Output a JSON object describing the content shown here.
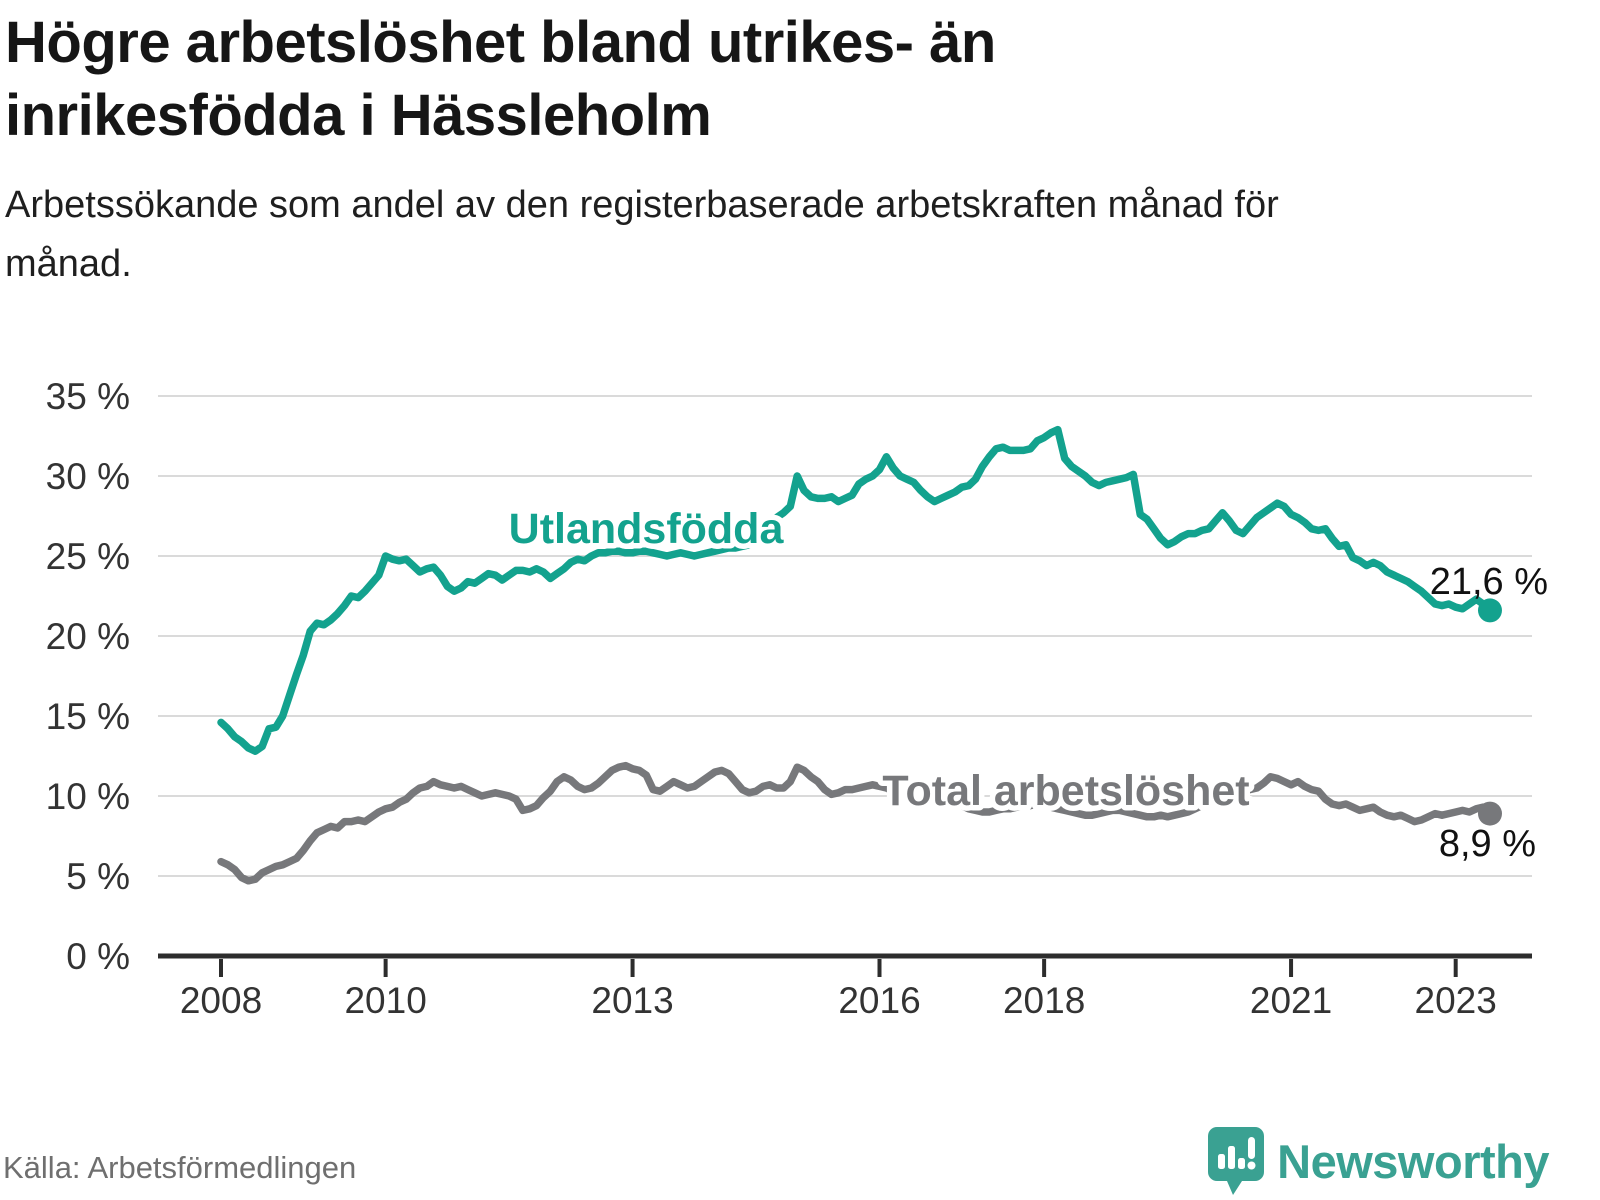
{
  "header": {
    "title": "Högre arbetslöshet bland utrikes- än inrikesfödda i Hässleholm",
    "subtitle": "Arbetssökande som andel av den registerbaserade arbetskraften månad för månad."
  },
  "footer": {
    "source": "Källa: Arbetsförmedlingen",
    "brand": "Newsworthy"
  },
  "colors": {
    "teal": "#13a28e",
    "gray": "#77787b",
    "grid": "#dadada",
    "axis": "#2d2d2d",
    "tick_text": "#333333",
    "value_text": "#111111",
    "logo": "#3aa192"
  },
  "chart_data": {
    "type": "line",
    "title": "Högre arbetslöshet bland utrikes- än inrikesfödda i Hässleholm",
    "subtitle": "Arbetssökande som andel av den registerbaserade arbetskraften månad för månad.",
    "x_unit": "month",
    "x_range": [
      "2008-01",
      "2023-06"
    ],
    "ylim": [
      0,
      35
    ],
    "grid": "horizontal",
    "legend": "inline-labels",
    "x_ticks": [
      2008,
      2010,
      2013,
      2016,
      2018,
      2021,
      2023
    ],
    "y_ticks": [
      {
        "value": 35,
        "label": "35 %"
      },
      {
        "value": 30,
        "label": "30 %"
      },
      {
        "value": 25,
        "label": "25 %"
      },
      {
        "value": 20,
        "label": "20 %"
      },
      {
        "value": 15,
        "label": "15 %"
      },
      {
        "value": 10,
        "label": "10 %"
      },
      {
        "value": 5,
        "label": "5 %"
      },
      {
        "value": 0,
        "label": "0 %"
      }
    ],
    "series": [
      {
        "name": "Utlandsfödda",
        "color": "#13a28e",
        "end_label": "21,6 %",
        "end_value": 21.6,
        "values": [
          14.6,
          14.2,
          13.7,
          13.4,
          13.0,
          12.8,
          13.1,
          14.2,
          14.3,
          15.0,
          16.3,
          17.6,
          18.8,
          20.3,
          20.8,
          20.7,
          21.0,
          21.4,
          21.9,
          22.5,
          22.4,
          22.8,
          23.3,
          23.8,
          25.0,
          24.8,
          24.7,
          24.8,
          24.4,
          24.0,
          24.2,
          24.3,
          23.8,
          23.1,
          22.8,
          23.0,
          23.4,
          23.3,
          23.6,
          23.9,
          23.8,
          23.5,
          23.8,
          24.1,
          24.1,
          24.0,
          24.2,
          24.0,
          23.6,
          23.9,
          24.2,
          24.6,
          24.8,
          24.7,
          25.0,
          25.2,
          25.2,
          25.3,
          25.3,
          25.2,
          25.2,
          25.3,
          25.3,
          25.2,
          25.1,
          25.0,
          25.1,
          25.2,
          25.1,
          25.0,
          25.1,
          25.2,
          25.3,
          25.4,
          25.5,
          25.5,
          25.6,
          25.7,
          26.0,
          26.4,
          26.9,
          27.4,
          27.7,
          28.1,
          30.0,
          29.1,
          28.7,
          28.6,
          28.6,
          28.7,
          28.4,
          28.6,
          28.8,
          29.5,
          29.8,
          30.0,
          30.4,
          31.2,
          30.5,
          30.0,
          29.8,
          29.6,
          29.1,
          28.7,
          28.4,
          28.6,
          28.8,
          29.0,
          29.3,
          29.4,
          29.8,
          30.6,
          31.2,
          31.7,
          31.8,
          31.6,
          31.6,
          31.6,
          31.7,
          32.2,
          32.4,
          32.7,
          32.9,
          31.1,
          30.6,
          30.3,
          30.0,
          29.6,
          29.4,
          29.6,
          29.7,
          29.8,
          29.9,
          30.1,
          27.6,
          27.3,
          26.7,
          26.1,
          25.7,
          25.9,
          26.2,
          26.4,
          26.4,
          26.6,
          26.7,
          27.2,
          27.7,
          27.2,
          26.6,
          26.4,
          26.9,
          27.4,
          27.7,
          28.0,
          28.3,
          28.1,
          27.6,
          27.4,
          27.1,
          26.7,
          26.6,
          26.7,
          26.1,
          25.6,
          25.7,
          24.9,
          24.7,
          24.4,
          24.6,
          24.4,
          24.0,
          23.8,
          23.6,
          23.4,
          23.1,
          22.8,
          22.4,
          22.0,
          21.9,
          22.0,
          21.8,
          21.7,
          22.0,
          22.3,
          22.0,
          21.6
        ]
      },
      {
        "name": "Total arbetslöshet",
        "color": "#77787b",
        "end_label": "8,9 %",
        "end_value": 8.9,
        "values": [
          5.9,
          5.7,
          5.4,
          4.9,
          4.7,
          4.8,
          5.2,
          5.4,
          5.6,
          5.7,
          5.9,
          6.1,
          6.6,
          7.2,
          7.7,
          7.9,
          8.1,
          8.0,
          8.4,
          8.4,
          8.5,
          8.4,
          8.7,
          9.0,
          9.2,
          9.3,
          9.6,
          9.8,
          10.2,
          10.5,
          10.6,
          10.9,
          10.7,
          10.6,
          10.5,
          10.6,
          10.4,
          10.2,
          10.0,
          10.1,
          10.2,
          10.1,
          10.0,
          9.8,
          9.1,
          9.2,
          9.4,
          9.9,
          10.3,
          10.9,
          11.2,
          11.0,
          10.6,
          10.4,
          10.5,
          10.8,
          11.2,
          11.6,
          11.8,
          11.9,
          11.7,
          11.6,
          11.3,
          10.4,
          10.3,
          10.6,
          10.9,
          10.7,
          10.5,
          10.6,
          10.9,
          11.2,
          11.5,
          11.6,
          11.4,
          10.9,
          10.4,
          10.2,
          10.3,
          10.6,
          10.7,
          10.5,
          10.5,
          10.9,
          11.8,
          11.6,
          11.2,
          10.9,
          10.4,
          10.1,
          10.2,
          10.4,
          10.4,
          10.5,
          10.6,
          10.7,
          10.6,
          10.5,
          10.3,
          10.1,
          10.0,
          10.0,
          9.9,
          9.8,
          9.7,
          9.7,
          9.6,
          9.5,
          9.4,
          9.2,
          9.1,
          9.0,
          9.0,
          9.1,
          9.2,
          9.2,
          9.3,
          9.4,
          9.4,
          9.5,
          9.4,
          9.3,
          9.2,
          9.1,
          9.0,
          8.9,
          8.8,
          8.8,
          8.9,
          9.0,
          9.1,
          9.1,
          9.0,
          8.9,
          8.8,
          8.7,
          8.7,
          8.8,
          8.7,
          8.8,
          8.9,
          9.0,
          9.2,
          9.4,
          9.7,
          9.8,
          10.0,
          10.3,
          10.4,
          10.4,
          10.4,
          10.5,
          10.8,
          11.2,
          11.1,
          10.9,
          10.7,
          10.9,
          10.6,
          10.4,
          10.3,
          9.8,
          9.5,
          9.4,
          9.5,
          9.3,
          9.1,
          9.2,
          9.3,
          9.0,
          8.8,
          8.7,
          8.8,
          8.6,
          8.4,
          8.5,
          8.7,
          8.9,
          8.8,
          8.9,
          9.0,
          9.1,
          9.0,
          9.2,
          9.3,
          8.9
        ]
      }
    ]
  }
}
